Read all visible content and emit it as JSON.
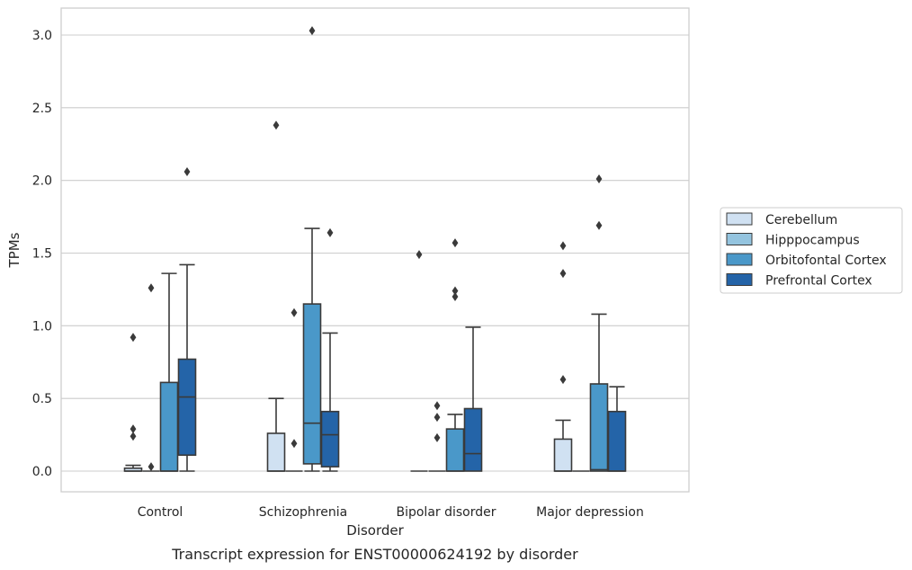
{
  "chart_data": {
    "type": "box",
    "title": "",
    "caption": "Transcript expression for ENST00000624192 by disorder",
    "xlabel": "Disorder",
    "ylabel": "TPMs",
    "ylim": [
      -0.15,
      3.2
    ],
    "yticks": [
      "0.0",
      "0.5",
      "1.0",
      "1.5",
      "2.0",
      "2.5",
      "3.0"
    ],
    "grid": "horizontal",
    "legend_position": "right",
    "categories": [
      "Control",
      "Schizophrenia",
      "Bipolar disorder",
      "Major depression"
    ],
    "series": [
      {
        "name": "Cerebellum",
        "color": "#d0e1f2",
        "boxes": [
          {
            "whisker_low": 0.0,
            "q1": 0.0,
            "median": 0.0,
            "q3": 0.02,
            "whisker_high": 0.04,
            "outliers": [
              0.24,
              0.29,
              0.92
            ]
          },
          {
            "whisker_low": 0.0,
            "q1": 0.0,
            "median": 0.0,
            "q3": 0.26,
            "whisker_high": 0.5,
            "outliers": [
              2.38
            ]
          },
          {
            "whisker_low": 0.0,
            "q1": 0.0,
            "median": 0.0,
            "q3": 0.0,
            "whisker_high": 0.0,
            "outliers": [
              1.49
            ]
          },
          {
            "whisker_low": 0.0,
            "q1": 0.0,
            "median": 0.0,
            "q3": 0.22,
            "whisker_high": 0.35,
            "outliers": [
              0.63,
              1.36,
              1.55
            ]
          }
        ]
      },
      {
        "name": "Hipppocampus",
        "color": "#94c4df",
        "boxes": [
          {
            "whisker_low": 0.0,
            "q1": 0.0,
            "median": 0.0,
            "q3": 0.0,
            "whisker_high": 0.0,
            "outliers": [
              0.03,
              1.26
            ]
          },
          {
            "whisker_low": 0.0,
            "q1": 0.0,
            "median": 0.0,
            "q3": 0.0,
            "whisker_high": 0.0,
            "outliers": [
              0.19,
              1.09
            ]
          },
          {
            "whisker_low": 0.0,
            "q1": 0.0,
            "median": 0.0,
            "q3": 0.0,
            "whisker_high": 0.0,
            "outliers": [
              0.23,
              0.37,
              0.45
            ]
          },
          {
            "whisker_low": 0.0,
            "q1": 0.0,
            "median": 0.0,
            "q3": 0.0,
            "whisker_high": 0.0,
            "outliers": []
          }
        ]
      },
      {
        "name": "Orbitofontal Cortex",
        "color": "#4a98c9",
        "boxes": [
          {
            "whisker_low": 0.0,
            "q1": 0.0,
            "median": 0.0,
            "q3": 0.61,
            "whisker_high": 1.36,
            "outliers": []
          },
          {
            "whisker_low": 0.0,
            "q1": 0.05,
            "median": 0.33,
            "q3": 1.15,
            "whisker_high": 1.67,
            "outliers": [
              3.03
            ]
          },
          {
            "whisker_low": 0.0,
            "q1": 0.0,
            "median": 0.0,
            "q3": 0.29,
            "whisker_high": 0.39,
            "outliers": [
              1.2,
              1.24,
              1.57
            ]
          },
          {
            "whisker_low": 0.0,
            "q1": 0.0,
            "median": 0.01,
            "q3": 0.6,
            "whisker_high": 1.08,
            "outliers": [
              1.69,
              2.01
            ]
          }
        ]
      },
      {
        "name": "Prefrontal Cortex",
        "color": "#2464a8",
        "boxes": [
          {
            "whisker_low": 0.0,
            "q1": 0.11,
            "median": 0.51,
            "q3": 0.77,
            "whisker_high": 1.42,
            "outliers": [
              2.06
            ]
          },
          {
            "whisker_low": 0.0,
            "q1": 0.03,
            "median": 0.25,
            "q3": 0.41,
            "whisker_high": 0.95,
            "outliers": [
              1.64
            ]
          },
          {
            "whisker_low": 0.0,
            "q1": 0.0,
            "median": 0.12,
            "q3": 0.43,
            "whisker_high": 0.99,
            "outliers": []
          },
          {
            "whisker_low": 0.0,
            "q1": 0.0,
            "median": 0.0,
            "q3": 0.41,
            "whisker_high": 0.58,
            "outliers": []
          }
        ]
      }
    ]
  }
}
